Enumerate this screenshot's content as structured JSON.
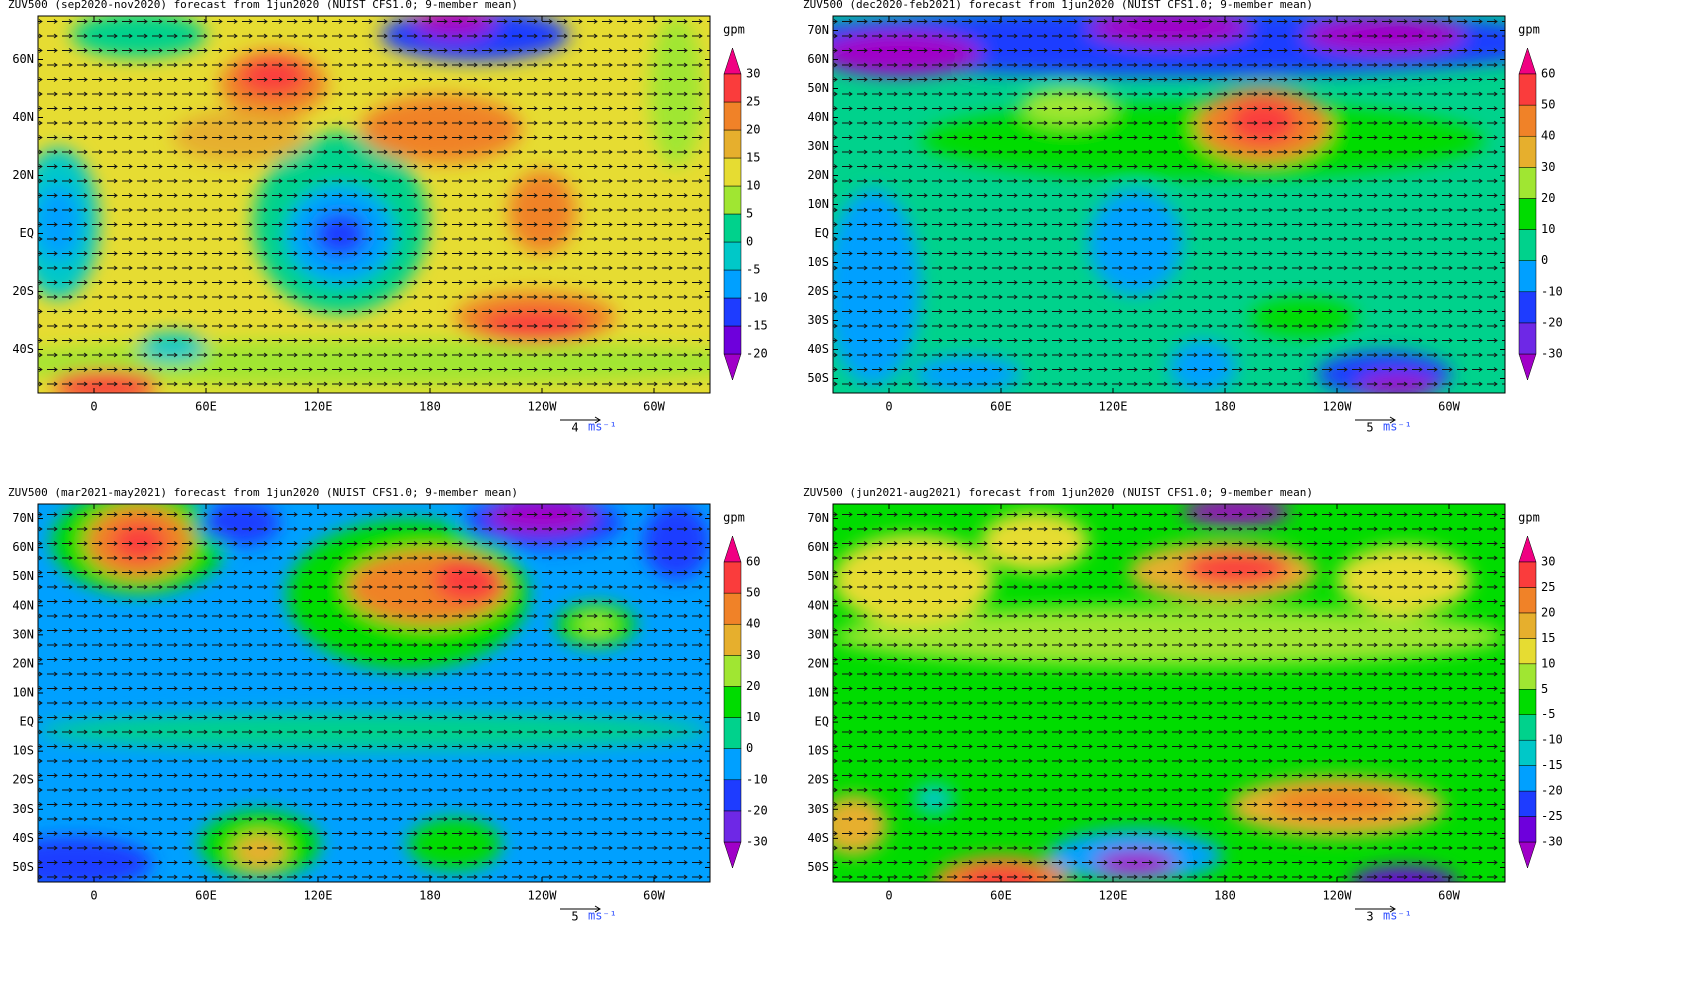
{
  "maps": [
    {
      "title": "ZUV500 (sep2020-nov2020) forecast from 1jun2020 (NUIST CFS1.0; 9-member mean)",
      "xlim": [
        -30,
        330
      ],
      "ylim": [
        -55,
        75
      ],
      "xticks": [
        0,
        {
          "value": 60,
          "label": "60E"
        },
        {
          "value": 120,
          "label": "120E"
        },
        180,
        {
          "value": 240,
          "label": "120W"
        },
        {
          "value": 300,
          "label": "60W"
        }
      ],
      "yticks": [
        {
          "value": 60,
          "label": "60N"
        },
        {
          "value": 40,
          "label": "40N"
        },
        {
          "value": 20,
          "label": "20N"
        },
        {
          "value": 0,
          "label": "EQ"
        },
        {
          "value": -20,
          "label": "20S"
        },
        {
          "value": -40,
          "label": "40S"
        }
      ],
      "colorbar": {
        "unit": "gpm",
        "levels": [
          -20,
          -15,
          -10,
          -5,
          0,
          5,
          10,
          15,
          20,
          25,
          30
        ],
        "colors": [
          "#a000c8",
          "#6e00dc",
          "#1e3cff",
          "#00a0ff",
          "#00c8c8",
          "#00d28c",
          "#a0e632",
          "#e6dc32",
          "#e6af2d",
          "#f08228",
          "#fa3c3c",
          "#f00082"
        ]
      },
      "reference_vector": {
        "value": 4,
        "unit": "ms⁻¹"
      }
    },
    {
      "title": "ZUV500 (dec2020-feb2021) forecast from 1jun2020 (NUIST CFS1.0; 9-member mean)",
      "xlim": [
        -30,
        330
      ],
      "ylim": [
        -55,
        75
      ],
      "xticks": [
        0,
        {
          "value": 60,
          "label": "60E"
        },
        {
          "value": 120,
          "label": "120E"
        },
        180,
        {
          "value": 240,
          "label": "120W"
        },
        {
          "value": 300,
          "label": "60W"
        }
      ],
      "yticks": [
        {
          "value": 70,
          "label": "70N"
        },
        {
          "value": 60,
          "label": "60N"
        },
        {
          "value": 50,
          "label": "50N"
        },
        {
          "value": 40,
          "label": "40N"
        },
        {
          "value": 30,
          "label": "30N"
        },
        {
          "value": 20,
          "label": "20N"
        },
        {
          "value": 10,
          "label": "10N"
        },
        {
          "value": 0,
          "label": "EQ"
        },
        {
          "value": -10,
          "label": "10S"
        },
        {
          "value": -20,
          "label": "20S"
        },
        {
          "value": -30,
          "label": "30S"
        },
        {
          "value": -40,
          "label": "40S"
        },
        {
          "value": -50,
          "label": "50S"
        }
      ],
      "colorbar": {
        "unit": "gpm",
        "levels": [
          -30,
          -20,
          -10,
          0,
          10,
          20,
          30,
          40,
          50,
          60
        ],
        "colors": [
          "#a000c8",
          "#6e28e6",
          "#1e3cff",
          "#00a0ff",
          "#00d28c",
          "#00dc00",
          "#a0e632",
          "#e6af2d",
          "#f08228",
          "#fa3c3c",
          "#f00082"
        ]
      },
      "reference_vector": {
        "value": 5,
        "unit": "ms⁻¹"
      }
    },
    {
      "title": "ZUV500 (mar2021-may2021) forecast from 1jun2020 (NUIST CFS1.0; 9-member mean)",
      "xlim": [
        -30,
        330
      ],
      "ylim": [
        -55,
        75
      ],
      "xticks": [
        0,
        {
          "value": 60,
          "label": "60E"
        },
        {
          "value": 120,
          "label": "120E"
        },
        180,
        {
          "value": 240,
          "label": "120W"
        },
        {
          "value": 300,
          "label": "60W"
        }
      ],
      "yticks": [
        {
          "value": 70,
          "label": "70N"
        },
        {
          "value": 60,
          "label": "60N"
        },
        {
          "value": 50,
          "label": "50N"
        },
        {
          "value": 40,
          "label": "40N"
        },
        {
          "value": 30,
          "label": "30N"
        },
        {
          "value": 20,
          "label": "20N"
        },
        {
          "value": 10,
          "label": "10N"
        },
        {
          "value": 0,
          "label": "EQ"
        },
        {
          "value": -10,
          "label": "10S"
        },
        {
          "value": -20,
          "label": "20S"
        },
        {
          "value": -30,
          "label": "30S"
        },
        {
          "value": -40,
          "label": "40S"
        },
        {
          "value": -50,
          "label": "50S"
        }
      ],
      "colorbar": {
        "unit": "gpm",
        "levels": [
          -30,
          -20,
          -10,
          0,
          10,
          20,
          30,
          40,
          50,
          60
        ],
        "colors": [
          "#a000c8",
          "#6e28e6",
          "#1e3cff",
          "#00a0ff",
          "#00d28c",
          "#00dc00",
          "#a0e632",
          "#e6af2d",
          "#f08228",
          "#fa3c3c",
          "#f00082"
        ]
      },
      "reference_vector": {
        "value": 5,
        "unit": "ms⁻¹"
      }
    },
    {
      "title": "ZUV500 (jun2021-aug2021) forecast from 1jun2020 (NUIST CFS1.0; 9-member mean)",
      "xlim": [
        -30,
        330
      ],
      "ylim": [
        -55,
        75
      ],
      "xticks": [
        0,
        {
          "value": 60,
          "label": "60E"
        },
        {
          "value": 120,
          "label": "120E"
        },
        180,
        {
          "value": 240,
          "label": "120W"
        },
        {
          "value": 300,
          "label": "60W"
        }
      ],
      "yticks": [
        {
          "value": 70,
          "label": "70N"
        },
        {
          "value": 60,
          "label": "60N"
        },
        {
          "value": 50,
          "label": "50N"
        },
        {
          "value": 40,
          "label": "40N"
        },
        {
          "value": 30,
          "label": "30N"
        },
        {
          "value": 20,
          "label": "20N"
        },
        {
          "value": 10,
          "label": "10N"
        },
        {
          "value": 0,
          "label": "EQ"
        },
        {
          "value": -10,
          "label": "10S"
        },
        {
          "value": -20,
          "label": "20S"
        },
        {
          "value": -30,
          "label": "30S"
        },
        {
          "value": -40,
          "label": "40S"
        },
        {
          "value": -50,
          "label": "50S"
        }
      ],
      "colorbar": {
        "unit": "gpm",
        "levels": [
          -30,
          -25,
          -20,
          -15,
          -10,
          -5,
          5,
          10,
          15,
          20,
          25,
          30
        ],
        "colors": [
          "#a000c8",
          "#6e00dc",
          "#1e3cff",
          "#00a0ff",
          "#00c8c8",
          "#00d28c",
          "#00dc00",
          "#a0e632",
          "#e6dc32",
          "#e6af2d",
          "#f08228",
          "#fa3c3c",
          "#f00082"
        ]
      },
      "reference_vector": {
        "value": 3,
        "unit": "ms⁻¹"
      }
    }
  ]
}
